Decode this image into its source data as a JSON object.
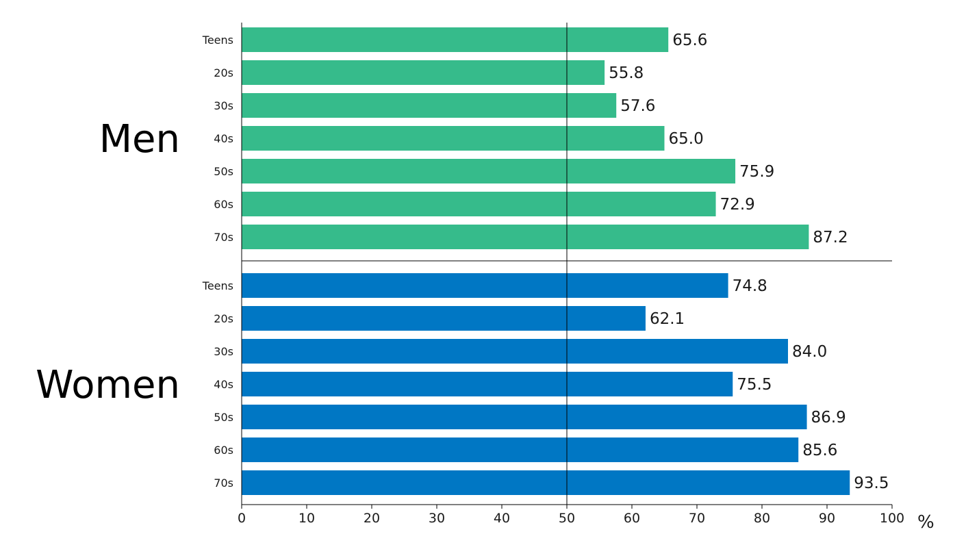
{
  "chart_data": {
    "type": "bar",
    "orientation": "horizontal",
    "categories": [
      "Teens",
      "20s",
      "30s",
      "40s",
      "50s",
      "60s",
      "70s"
    ],
    "series": [
      {
        "name": "Men",
        "color": "#36bb8b",
        "values": [
          65.6,
          55.8,
          57.6,
          65.0,
          75.9,
          72.9,
          87.2
        ]
      },
      {
        "name": "Women",
        "color": "#0077c4",
        "values": [
          74.8,
          62.1,
          84.0,
          75.5,
          86.9,
          85.6,
          93.5
        ]
      }
    ],
    "xlim": [
      0,
      100
    ],
    "xticks": [
      0,
      10,
      20,
      30,
      40,
      50,
      60,
      70,
      80,
      90,
      100
    ],
    "xlabel": "%",
    "reference_line": 50,
    "value_decimals": 1,
    "grid": false
  }
}
